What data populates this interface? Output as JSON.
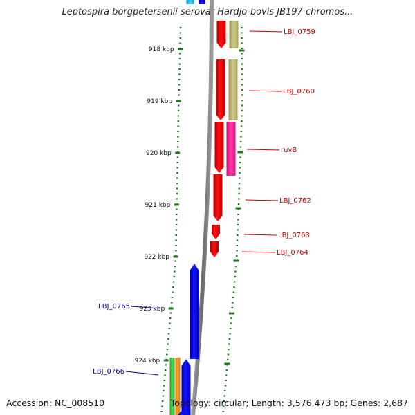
{
  "title": "Leptospira borgpetersenii serovar Hardjo-bovis JB197 chromos...",
  "footer": {
    "accession": "Accession: NC_008510",
    "summary": "Topology: circular; Length: 3,576,473 bp; Genes: 2,687"
  },
  "colors": {
    "backbone": "#7f7f7f",
    "tick": "#1a7a1a",
    "forward_gene": "#ff0000",
    "reverse_gene": "#0000ff",
    "cog_khaki": "#bdb76b",
    "cog_pink": "#ff1493",
    "cog_green": "#32cd32",
    "cog_orange": "#ff8c00",
    "cog_cyan": "#00bfff",
    "forward_label": "#cc0000",
    "reverse_label": "#00008b"
  },
  "scale_labels": [
    "918 kbp",
    "919 kbp",
    "920 kbp",
    "921 kbp",
    "922 kbp",
    "923 kbp",
    "924 kbp"
  ],
  "forward_genes": [
    {
      "name": "LBJ_0759",
      "cog": "cog_khaki"
    },
    {
      "name": "LBJ_0760",
      "cog": "cog_khaki"
    },
    {
      "name": "ruvB",
      "cog": "cog_pink"
    },
    {
      "name": "LBJ_0762",
      "cog": ""
    },
    {
      "name": "LBJ_0763",
      "cog": ""
    },
    {
      "name": "LBJ_0764",
      "cog": ""
    }
  ],
  "reverse_genes": [
    {
      "name": "LBJ_0765",
      "cog": ""
    },
    {
      "name": "LBJ_0766",
      "cog": "cog_green"
    }
  ]
}
